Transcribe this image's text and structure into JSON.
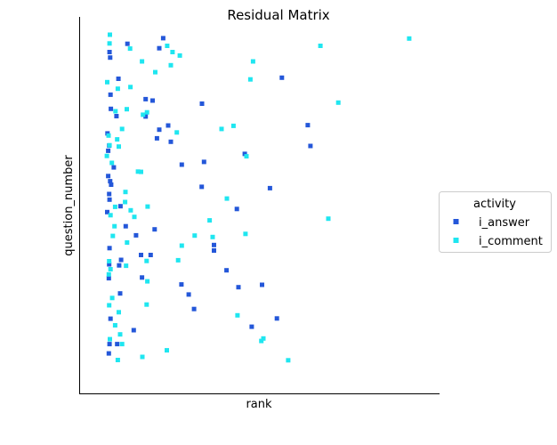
{
  "chart_data": {
    "type": "scatter",
    "title": "Residual Matrix",
    "xlabel": "rank",
    "ylabel": "question_number",
    "xlim": [
      0,
      100
    ],
    "ylim": [
      0,
      100
    ],
    "xticks": [],
    "yticks": [],
    "grid": false,
    "legend": {
      "title": "activity",
      "placement": "right"
    },
    "series": [
      {
        "name": "i_answer",
        "color": "#2457d9",
        "marker": "square",
        "points": [
          [
            21.0,
            98.2
          ],
          [
            10.2,
            96.6
          ],
          [
            19.8,
            95.3
          ],
          [
            4.8,
            94.2
          ],
          [
            5.0,
            92.6
          ],
          [
            7.5,
            86.5
          ],
          [
            56.8,
            86.8
          ],
          [
            5.1,
            81.9
          ],
          [
            15.7,
            80.6
          ],
          [
            17.8,
            80.2
          ],
          [
            32.7,
            79.3
          ],
          [
            5.2,
            77.8
          ],
          [
            6.9,
            75.7
          ],
          [
            15.7,
            75.6
          ],
          [
            22.5,
            73.0
          ],
          [
            64.6,
            73.1
          ],
          [
            19.8,
            71.8
          ],
          [
            4.2,
            70.7
          ],
          [
            19.1,
            69.3
          ],
          [
            23.3,
            68.3
          ],
          [
            4.7,
            67.2
          ],
          [
            65.4,
            67.1
          ],
          [
            4.4,
            65.7
          ],
          [
            45.6,
            64.8
          ],
          [
            33.3,
            62.5
          ],
          [
            6.1,
            60.9
          ],
          [
            26.6,
            61.7
          ],
          [
            4.4,
            58.4
          ],
          [
            5.0,
            56.9
          ],
          [
            5.3,
            55.9
          ],
          [
            32.6,
            55.3
          ],
          [
            53.2,
            54.9
          ],
          [
            4.7,
            53.2
          ],
          [
            4.8,
            51.6
          ],
          [
            43.2,
            48.9
          ],
          [
            8.1,
            49.7
          ],
          [
            4.1,
            48.0
          ],
          [
            9.7,
            43.9
          ],
          [
            18.4,
            43.0
          ],
          [
            12.8,
            41.3
          ],
          [
            36.3,
            38.5
          ],
          [
            36.3,
            36.9
          ],
          [
            4.8,
            37.6
          ],
          [
            14.3,
            35.6
          ],
          [
            17.2,
            35.6
          ],
          [
            8.3,
            34.2
          ],
          [
            4.7,
            32.9
          ],
          [
            7.7,
            32.6
          ],
          [
            40.1,
            31.2
          ],
          [
            14.6,
            29.1
          ],
          [
            4.6,
            28.9
          ],
          [
            26.5,
            27.1
          ],
          [
            43.7,
            26.3
          ],
          [
            50.8,
            27.0
          ],
          [
            8.0,
            24.5
          ],
          [
            30.3,
            20.0
          ],
          [
            5.1,
            17.2
          ],
          [
            55.3,
            17.3
          ],
          [
            47.7,
            14.9
          ],
          [
            12.1,
            13.9
          ],
          [
            4.8,
            9.9
          ],
          [
            7.1,
            9.9
          ],
          [
            4.6,
            7.2
          ],
          [
            28.7,
            24.2
          ]
        ]
      },
      {
        "name": "i_comment",
        "color": "#1fe6f0",
        "marker": "square",
        "points": [
          [
            4.9,
            99.2
          ],
          [
            95.2,
            98.1
          ],
          [
            4.8,
            96.7
          ],
          [
            22.2,
            96.0
          ],
          [
            68.4,
            96.0
          ],
          [
            11.0,
            95.2
          ],
          [
            23.8,
            94.2
          ],
          [
            26.0,
            93.2
          ],
          [
            14.6,
            91.5
          ],
          [
            23.3,
            90.4
          ],
          [
            48.1,
            91.5
          ],
          [
            18.6,
            88.4
          ],
          [
            47.3,
            86.3
          ],
          [
            4.1,
            85.5
          ],
          [
            11.1,
            84.1
          ],
          [
            7.3,
            83.6
          ],
          [
            73.8,
            79.6
          ],
          [
            10.0,
            77.7
          ],
          [
            6.6,
            77.1
          ],
          [
            16.1,
            76.8
          ],
          [
            14.9,
            76.1
          ],
          [
            42.2,
            72.9
          ],
          [
            38.6,
            72.0
          ],
          [
            8.6,
            72.0
          ],
          [
            25.1,
            71.0
          ],
          [
            4.5,
            70.1
          ],
          [
            7.1,
            69.0
          ],
          [
            4.8,
            67.3
          ],
          [
            7.6,
            66.9
          ],
          [
            4.0,
            64.2
          ],
          [
            46.1,
            64.1
          ],
          [
            5.5,
            62.2
          ],
          [
            13.4,
            59.7
          ],
          [
            14.3,
            59.6
          ],
          [
            9.6,
            53.8
          ],
          [
            40.2,
            51.9
          ],
          [
            9.5,
            50.9
          ],
          [
            16.3,
            49.6
          ],
          [
            6.5,
            49.5
          ],
          [
            11.2,
            48.5
          ],
          [
            5.1,
            47.1
          ],
          [
            12.3,
            46.6
          ],
          [
            70.8,
            46.1
          ],
          [
            35.0,
            45.6
          ],
          [
            6.3,
            43.9
          ],
          [
            35.9,
            40.8
          ],
          [
            5.8,
            41.1
          ],
          [
            45.8,
            41.7
          ],
          [
            30.5,
            41.2
          ],
          [
            10.1,
            39.2
          ],
          [
            26.6,
            38.3
          ],
          [
            4.7,
            33.8
          ],
          [
            25.5,
            34.1
          ],
          [
            16.0,
            33.9
          ],
          [
            9.8,
            32.5
          ],
          [
            5.1,
            31.5
          ],
          [
            4.6,
            30.0
          ],
          [
            16.2,
            28.0
          ],
          [
            5.6,
            23.2
          ],
          [
            4.7,
            21.1
          ],
          [
            16.0,
            21.3
          ],
          [
            7.6,
            19.1
          ],
          [
            43.4,
            18.2
          ],
          [
            6.5,
            15.3
          ],
          [
            8.0,
            12.7
          ],
          [
            51.2,
            11.5
          ],
          [
            50.6,
            10.8
          ],
          [
            4.9,
            11.3
          ],
          [
            8.6,
            9.9
          ],
          [
            22.1,
            8.1
          ],
          [
            14.7,
            6.2
          ],
          [
            7.3,
            5.3
          ],
          [
            58.7,
            5.2
          ]
        ]
      }
    ]
  }
}
